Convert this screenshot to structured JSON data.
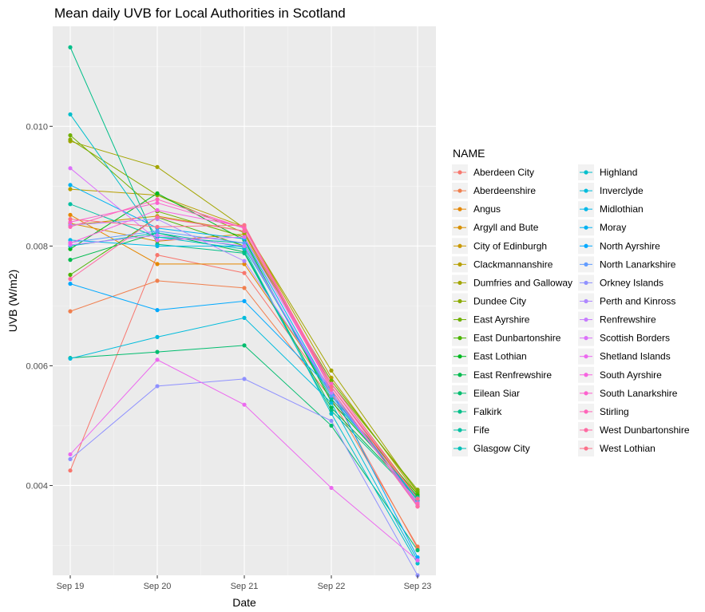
{
  "chart_data": {
    "type": "line",
    "title": "Mean daily UVB for Local Authorities in Scotland",
    "xlabel": "Date",
    "ylabel": "UVB (W/m2)",
    "x": [
      "Sep 19",
      "Sep 20",
      "Sep 21",
      "Sep 22",
      "Sep 23"
    ],
    "ylim": [
      0.0025,
      0.01167
    ],
    "yticks": [
      0.004,
      0.006,
      0.008,
      0.01
    ],
    "ytick_labels": [
      "0.004",
      "0.006",
      "0.008",
      "0.010"
    ],
    "grid": true,
    "legend": {
      "title": "NAME",
      "position": "right",
      "columns": 2
    },
    "series": [
      {
        "name": "Aberdeen City",
        "color": "#F8766D",
        "values": [
          0.00425,
          0.00785,
          0.00755,
          0.00555,
          0.00295
        ]
      },
      {
        "name": "Aberdeenshire",
        "color": "#F07F4E",
        "values": [
          0.00691,
          0.00742,
          0.0073,
          0.00545,
          0.00298
        ]
      },
      {
        "name": "Angus",
        "color": "#E58700",
        "values": [
          0.00852,
          0.0077,
          0.0077,
          0.0056,
          0.00365
        ]
      },
      {
        "name": "Argyll and Bute",
        "color": "#D89000",
        "values": [
          0.00838,
          0.00808,
          0.0082,
          0.0057,
          0.0038
        ]
      },
      {
        "name": "City of Edinburgh",
        "color": "#C99800",
        "values": [
          0.00835,
          0.0085,
          0.00825,
          0.00565,
          0.00375
        ]
      },
      {
        "name": "Clackmannanshire",
        "color": "#B79F00",
        "values": [
          0.00895,
          0.00885,
          0.00832,
          0.0058,
          0.00385
        ]
      },
      {
        "name": "Dumfries and Galloway",
        "color": "#A3A500",
        "values": [
          0.00975,
          0.00932,
          0.0083,
          0.00592,
          0.00388
        ]
      },
      {
        "name": "Dundee City",
        "color": "#8CAB00",
        "values": [
          0.00978,
          0.00885,
          0.00822,
          0.0057,
          0.00393
        ]
      },
      {
        "name": "East Ayrshire",
        "color": "#70B000",
        "values": [
          0.00985,
          0.00858,
          0.00815,
          0.00575,
          0.0039
        ]
      },
      {
        "name": "East Dunbartonshire",
        "color": "#4BB400",
        "values": [
          0.00752,
          0.00848,
          0.008,
          0.0055,
          0.00385
        ]
      },
      {
        "name": "East Lothian",
        "color": "#00B81F",
        "values": [
          0.00795,
          0.00888,
          0.0081,
          0.0054,
          0.00382
        ]
      },
      {
        "name": "East Renfrewshire",
        "color": "#00BB4E",
        "values": [
          0.00777,
          0.00822,
          0.0079,
          0.0053,
          0.0038
        ]
      },
      {
        "name": "Eilean Siar",
        "color": "#00BD6E",
        "values": [
          0.00613,
          0.00623,
          0.00634,
          0.005,
          0.00292
        ]
      },
      {
        "name": "Falkirk",
        "color": "#00BF89",
        "values": [
          0.01132,
          0.00803,
          0.00788,
          0.00525,
          0.00378
        ]
      },
      {
        "name": "Fife",
        "color": "#00C0A2",
        "values": [
          0.0087,
          0.00815,
          0.00805,
          0.00545,
          0.0038
        ]
      },
      {
        "name": "Glasgow City",
        "color": "#00C0B8",
        "values": [
          0.008,
          0.00822,
          0.00798,
          0.00555,
          0.00375
        ]
      },
      {
        "name": "Highland",
        "color": "#00BFCC",
        "values": [
          0.0102,
          0.00815,
          0.00795,
          0.0052,
          0.0027
        ]
      },
      {
        "name": "Inverclyde",
        "color": "#00BCDC",
        "values": [
          0.00612,
          0.00648,
          0.0068,
          0.00538,
          0.00275
        ]
      },
      {
        "name": "Midlothian",
        "color": "#00B8E8",
        "values": [
          0.0081,
          0.008,
          0.008,
          0.0055,
          0.00378
        ]
      },
      {
        "name": "Moray",
        "color": "#00B2F3",
        "values": [
          0.00902,
          0.0083,
          0.00812,
          0.00555,
          0.00368
        ]
      },
      {
        "name": "North Ayrshire",
        "color": "#00A9FF",
        "values": [
          0.00737,
          0.00693,
          0.00708,
          0.0056,
          0.0028
        ]
      },
      {
        "name": "North Lanarkshire",
        "color": "#619CFF",
        "values": [
          0.00806,
          0.00825,
          0.00805,
          0.0055,
          0.00372
        ]
      },
      {
        "name": "Orkney Islands",
        "color": "#8F91FF",
        "values": [
          0.00444,
          0.00566,
          0.00578,
          0.00508,
          0.0025
        ]
      },
      {
        "name": "Perth and Kinross",
        "color": "#AF88FF",
        "values": [
          0.00835,
          0.00845,
          0.00775,
          0.0056,
          0.00365
        ]
      },
      {
        "name": "Renfrewshire",
        "color": "#C77CFF",
        "values": [
          0.00802,
          0.00818,
          0.008,
          0.00555,
          0.00368
        ]
      },
      {
        "name": "Scottish Borders",
        "color": "#DC71FA",
        "values": [
          0.0093,
          0.0081,
          0.00815,
          0.00565,
          0.0037
        ]
      },
      {
        "name": "Shetland Islands",
        "color": "#EC69EF",
        "values": [
          0.00452,
          0.0061,
          0.00535,
          0.00396,
          0.00275
        ]
      },
      {
        "name": "South Ayrshire",
        "color": "#F763E0",
        "values": [
          0.00805,
          0.0086,
          0.00832,
          0.0056,
          0.00365
        ]
      },
      {
        "name": "South Lanarkshire",
        "color": "#FD61CE",
        "values": [
          0.0084,
          0.00872,
          0.0083,
          0.0057,
          0.00378
        ]
      },
      {
        "name": "Stirling",
        "color": "#FF65B9",
        "values": [
          0.00832,
          0.00878,
          0.0083,
          0.00565,
          0.0037
        ]
      },
      {
        "name": "West Dunbartonshire",
        "color": "#FF6AA2",
        "values": [
          0.00745,
          0.00848,
          0.00825,
          0.0056,
          0.00365
        ]
      },
      {
        "name": "West Lothian",
        "color": "#FC718A",
        "values": [
          0.00845,
          0.00832,
          0.00835,
          0.00565,
          0.00378
        ]
      }
    ]
  }
}
